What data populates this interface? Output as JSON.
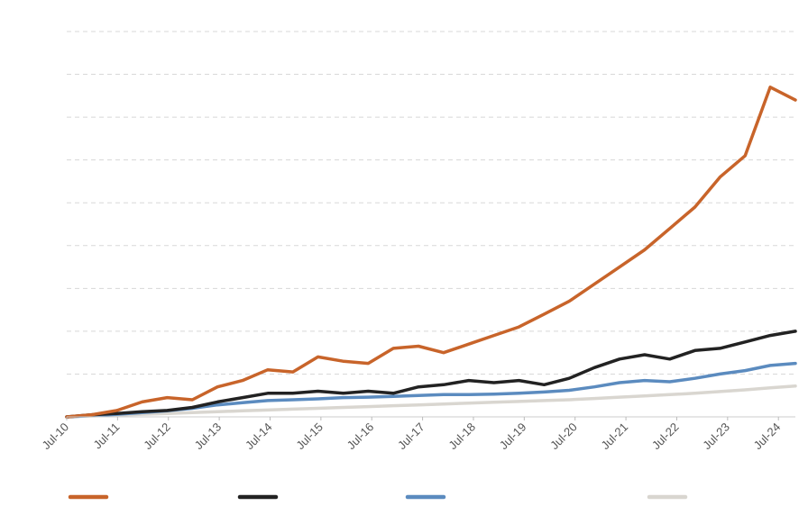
{
  "chart_data": {
    "type": "line",
    "title": "",
    "xlabel": "",
    "ylabel": "",
    "x_tick_labels": [
      "Jul-10",
      "Jul-11",
      "Jul-12",
      "Jul-13",
      "Jul-14",
      "Jul-15",
      "Jul-16",
      "Jul-17",
      "Jul-18",
      "Jul-19",
      "Jul-20",
      "Jul-21",
      "Jul-22",
      "Jul-23",
      "Jul-24"
    ],
    "x": [
      "Jul-10",
      "Jan-11",
      "Jul-11",
      "Jan-12",
      "Jul-12",
      "Jan-13",
      "Jul-13",
      "Jan-14",
      "Jul-14",
      "Jan-15",
      "Jul-15",
      "Jan-16",
      "Jul-16",
      "Jan-17",
      "Jul-17",
      "Jan-18",
      "Jul-18",
      "Jan-19",
      "Jul-19",
      "Jan-20",
      "Jul-20",
      "Jan-21",
      "Jul-21",
      "Jan-22",
      "Jul-22",
      "Jan-23",
      "Jul-23",
      "Jan-24",
      "Jul-24",
      "Nov-24"
    ],
    "ylim": [
      0,
      9
    ],
    "y_gridlines": [
      0,
      1,
      2,
      3,
      4,
      5,
      6,
      7,
      8,
      9
    ],
    "grid": true,
    "legend_position": "bottom",
    "series": [
      {
        "color": "#c8642a",
        "values": [
          0.0,
          0.05,
          0.15,
          0.35,
          0.45,
          0.4,
          0.7,
          0.85,
          1.1,
          1.05,
          1.4,
          1.3,
          1.25,
          1.6,
          1.65,
          1.5,
          1.7,
          1.9,
          2.1,
          2.4,
          2.7,
          3.1,
          3.5,
          3.9,
          4.4,
          4.9,
          5.6,
          6.1,
          7.7,
          7.4
        ]
      },
      {
        "color": "#222222",
        "values": [
          0.0,
          0.05,
          0.08,
          0.12,
          0.15,
          0.22,
          0.35,
          0.45,
          0.55,
          0.55,
          0.6,
          0.55,
          0.6,
          0.55,
          0.7,
          0.75,
          0.85,
          0.8,
          0.85,
          0.75,
          0.9,
          1.15,
          1.35,
          1.45,
          1.35,
          1.55,
          1.6,
          1.75,
          1.9,
          2.0
        ]
      },
      {
        "color": "#5b8bbf",
        "values": [
          0.0,
          0.03,
          0.06,
          0.1,
          0.14,
          0.2,
          0.28,
          0.33,
          0.38,
          0.4,
          0.42,
          0.45,
          0.46,
          0.48,
          0.5,
          0.52,
          0.52,
          0.53,
          0.55,
          0.58,
          0.62,
          0.7,
          0.8,
          0.85,
          0.82,
          0.9,
          1.0,
          1.08,
          1.2,
          1.25
        ]
      },
      {
        "color": "#d9d6d0",
        "values": [
          0.0,
          0.02,
          0.04,
          0.06,
          0.08,
          0.1,
          0.12,
          0.14,
          0.16,
          0.18,
          0.2,
          0.22,
          0.24,
          0.26,
          0.28,
          0.3,
          0.32,
          0.34,
          0.36,
          0.38,
          0.4,
          0.43,
          0.46,
          0.49,
          0.52,
          0.55,
          0.59,
          0.63,
          0.68,
          0.72
        ]
      }
    ]
  }
}
